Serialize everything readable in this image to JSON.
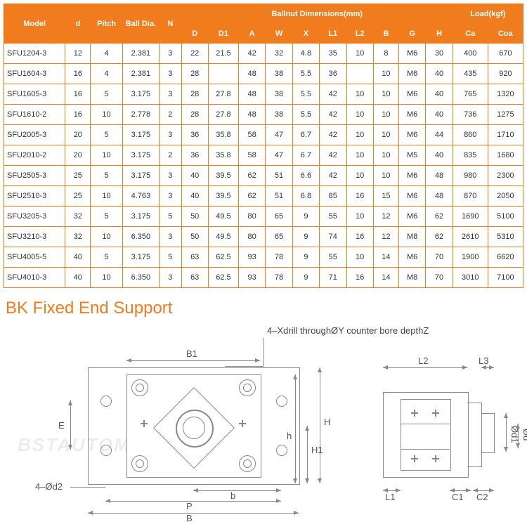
{
  "table": {
    "group_headers": {
      "model": "Model",
      "d": "d",
      "pitch": "Pitch",
      "balldia": "Ball Dia.",
      "n": "N",
      "ballnut": "Ballnut Dimensions(mm)",
      "load": "Load(kgf)"
    },
    "sub_headers": [
      "D",
      "D1",
      "A",
      "W",
      "X",
      "L1",
      "L2",
      "B",
      "G",
      "H",
      "Ca",
      "Coa"
    ],
    "rows": [
      [
        "SFU1204-3",
        "12",
        "4",
        "2.381",
        "3",
        "22",
        "21.5",
        "42",
        "32",
        "4.8",
        "35",
        "10",
        "8",
        "M6",
        "30",
        "400",
        "670"
      ],
      [
        "SFU1604-3",
        "16",
        "4",
        "2.381",
        "3",
        "28",
        "",
        "48",
        "38",
        "5.5",
        "36",
        "",
        "10",
        "M6",
        "40",
        "435",
        "920"
      ],
      [
        "SFU1605-3",
        "16",
        "5",
        "3.175",
        "3",
        "28",
        "27.8",
        "48",
        "38",
        "5.5",
        "42",
        "10",
        "10",
        "M6",
        "40",
        "765",
        "1320"
      ],
      [
        "SFU1610-2",
        "16",
        "10",
        "2.778",
        "2",
        "28",
        "27.8",
        "48",
        "38",
        "5.5",
        "42",
        "10",
        "10",
        "M6",
        "40",
        "736",
        "1275"
      ],
      [
        "SFU2005-3",
        "20",
        "5",
        "3.175",
        "3",
        "36",
        "35.8",
        "58",
        "47",
        "6.7",
        "42",
        "10",
        "10",
        "M6",
        "44",
        "860",
        "1710"
      ],
      [
        "SFU2010-2",
        "20",
        "10",
        "3.175",
        "2",
        "36",
        "35.8",
        "58",
        "47",
        "6.7",
        "42",
        "10",
        "10",
        "M5",
        "40",
        "835",
        "1680"
      ],
      [
        "SFU2505-3",
        "25",
        "5",
        "3.175",
        "3",
        "40",
        "39.5",
        "62",
        "51",
        "6.6",
        "42",
        "10",
        "10",
        "M6",
        "48",
        "980",
        "2300"
      ],
      [
        "SFU2510-3",
        "25",
        "10",
        "4.763",
        "3",
        "40",
        "39.5",
        "62",
        "51",
        "6.8",
        "85",
        "16",
        "15",
        "M6",
        "48",
        "870",
        "2050"
      ],
      [
        "SFU3205-3",
        "32",
        "5",
        "3.175",
        "5",
        "50",
        "49.5",
        "80",
        "65",
        "9",
        "55",
        "10",
        "12",
        "M6",
        "62",
        "1690",
        "5100"
      ],
      [
        "SFU3210-3",
        "32",
        "10",
        "6.350",
        "3",
        "50",
        "49.5",
        "80",
        "65",
        "9",
        "74",
        "16",
        "12",
        "M8",
        "62",
        "2610",
        "5310"
      ],
      [
        "SFU4005-5",
        "40",
        "5",
        "3.175",
        "5",
        "63",
        "62.5",
        "93",
        "78",
        "9",
        "55",
        "10",
        "14",
        "M6",
        "70",
        "1900",
        "6620"
      ],
      [
        "SFU4010-3",
        "40",
        "10",
        "6.350",
        "3",
        "63",
        "62.5",
        "93",
        "78",
        "9",
        "71",
        "16",
        "14",
        "M8",
        "70",
        "3010",
        "7100"
      ]
    ],
    "col_widths": [
      "70",
      "26",
      "34",
      "40",
      "22",
      "28",
      "32",
      "28",
      "28",
      "28",
      "28",
      "28",
      "26",
      "28",
      "28",
      "38",
      "38"
    ],
    "border_color": "#f07c1e",
    "header_bg": "#f07c1e",
    "header_fg": "#ffffff"
  },
  "section_title": "BK Fixed End Support",
  "note": "4–Xdrill throughØY counter bore depthZ",
  "dims": {
    "B1": "B1",
    "B": "B",
    "P": "P",
    "b": "b",
    "E": "E",
    "H": "H",
    "H1": "H1",
    "h": "h",
    "d2": "4–Ød2",
    "L2": "L2",
    "L3": "L3",
    "L1": "L1",
    "C1": "C1",
    "C2": "C2",
    "phi_d1": "Ød1",
    "phi_d": "Ød"
  },
  "watermark": "BSTAUTOMATION"
}
